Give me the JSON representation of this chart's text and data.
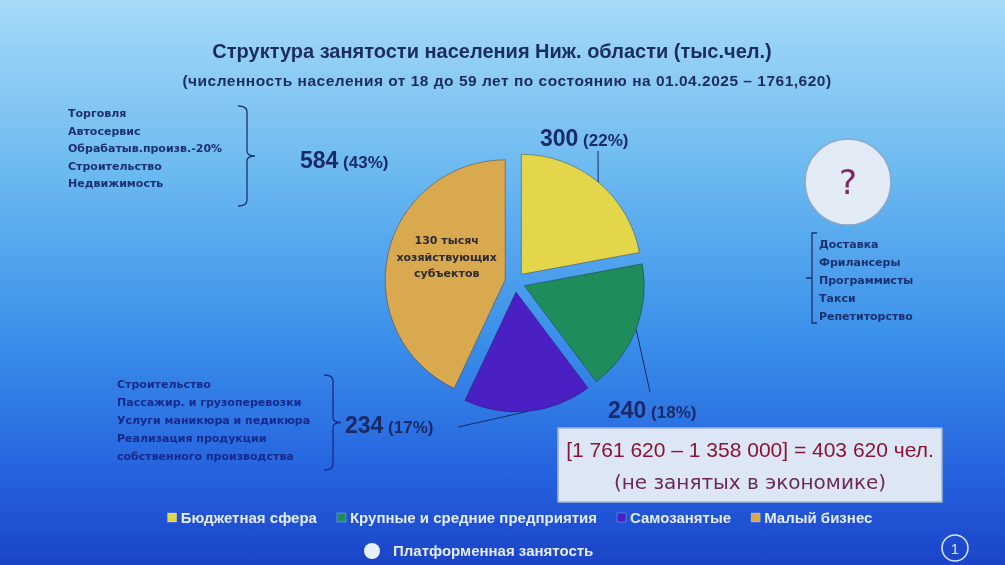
{
  "chart_data": {
    "type": "pie",
    "title": "Структура занятости населения Ниж. области (тыс.чел.)",
    "subtitle": "(численность населения от 18 до 59 лет по состоянию на 01.04.2025 – 1761,620)",
    "categories": [
      "Бюджетная сфера",
      "Крупные и средние предприятия",
      "Самозанятые",
      "Малый бизнес"
    ],
    "values": [
      300,
      240,
      234,
      584
    ],
    "colors": [
      "#e4d64a",
      "#1f8c5b",
      "#4a20c4",
      "#d9a94f"
    ],
    "value_labels": [
      "300 (22%)",
      "240 (18%)",
      "234 (17%)",
      "584 (43%)"
    ],
    "annotations": [
      "Торговля\nАвтосервис\nОбрабатыв.произв.-20%\nСтроительство\nНедвижимость",
      "130 тысяч\nхозяйствующих\nсубъектов",
      "?",
      "Доставка\nФрилансеры\nПрограммисты\nТакси\nРепетиторство",
      "Строительство\nПассажир. и грузоперевозки\nУслуги маникюра и педикюра\nРеализация продукции\nсобственного производства",
      "[1 761 620 – 1 358 000] = 403 620 чел.\n(не занятых в экономике)",
      "Платформенная занятость",
      "1"
    ],
    "legend": "bottom"
  }
}
